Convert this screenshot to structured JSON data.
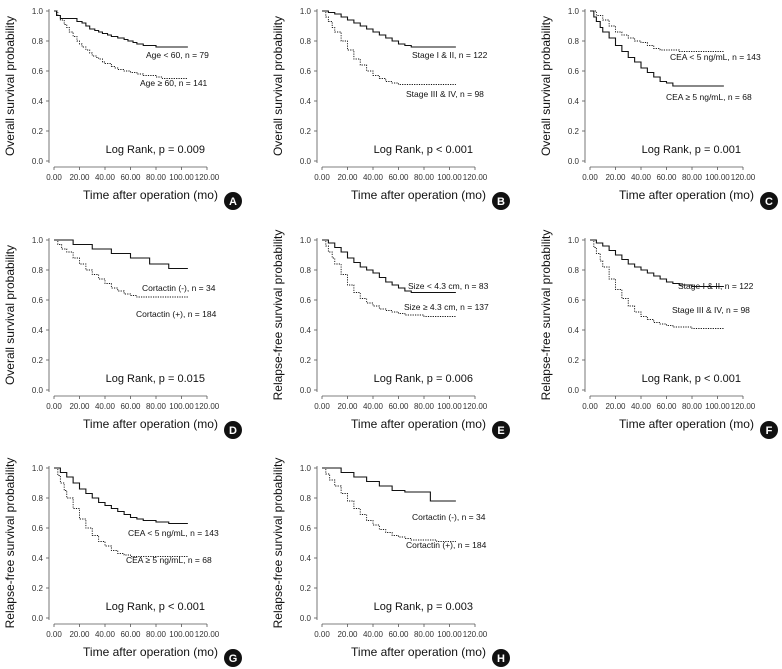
{
  "figure": {
    "x_ticks": [
      "0.00",
      "20.00",
      "40.00",
      "60.00",
      "80.00",
      "100.00",
      "120.00"
    ],
    "y_ticks": [
      "0.0",
      "0.2",
      "0.4",
      "0.6",
      "0.8",
      "1.0"
    ],
    "xlabel": "Time after operation (mo)"
  },
  "chart_data": [
    {
      "panel": "A",
      "type": "line",
      "ylabel": "Overall survival probability",
      "xlim": [
        0,
        120
      ],
      "ylim": [
        0,
        1
      ],
      "log_rank": "Log Rank, p = 0.009",
      "series": [
        {
          "name": "Age < 60, n = 79",
          "style": "solid",
          "x": [
            0,
            2,
            5,
            12,
            18,
            22,
            25,
            28,
            32,
            35,
            38,
            42,
            45,
            50,
            55,
            58,
            62,
            65,
            70,
            75,
            80,
            90,
            105
          ],
          "y": [
            1.0,
            0.97,
            0.95,
            0.95,
            0.93,
            0.92,
            0.9,
            0.88,
            0.87,
            0.86,
            0.85,
            0.84,
            0.83,
            0.82,
            0.81,
            0.8,
            0.79,
            0.78,
            0.77,
            0.77,
            0.76,
            0.76,
            0.76
          ]
        },
        {
          "name": "Age ≥ 60, n = 141",
          "style": "dotted",
          "x": [
            0,
            3,
            5,
            8,
            10,
            12,
            15,
            18,
            20,
            22,
            25,
            28,
            30,
            33,
            35,
            38,
            40,
            45,
            48,
            50,
            55,
            60,
            65,
            70,
            75,
            80,
            85,
            90,
            105
          ],
          "y": [
            1.0,
            0.97,
            0.94,
            0.91,
            0.89,
            0.86,
            0.83,
            0.8,
            0.78,
            0.76,
            0.74,
            0.72,
            0.7,
            0.69,
            0.68,
            0.66,
            0.65,
            0.63,
            0.62,
            0.61,
            0.6,
            0.59,
            0.58,
            0.57,
            0.57,
            0.56,
            0.55,
            0.55,
            0.55
          ]
        }
      ]
    },
    {
      "panel": "B",
      "type": "line",
      "ylabel": "Overall survival probability",
      "xlim": [
        0,
        120
      ],
      "ylim": [
        0,
        1
      ],
      "log_rank": "Log Rank, p < 0.001",
      "series": [
        {
          "name": "Stage I & II, n = 122",
          "style": "solid",
          "x": [
            0,
            5,
            10,
            15,
            20,
            25,
            30,
            35,
            40,
            45,
            50,
            55,
            60,
            65,
            70,
            80,
            90,
            105
          ],
          "y": [
            1.0,
            0.99,
            0.98,
            0.96,
            0.94,
            0.92,
            0.9,
            0.88,
            0.86,
            0.84,
            0.82,
            0.8,
            0.78,
            0.77,
            0.76,
            0.76,
            0.76,
            0.76
          ]
        },
        {
          "name": "Stage III & IV, n = 98",
          "style": "dotted",
          "x": [
            0,
            3,
            5,
            8,
            10,
            15,
            20,
            25,
            30,
            35,
            40,
            45,
            50,
            55,
            60,
            65,
            70,
            80,
            90,
            105
          ],
          "y": [
            1.0,
            0.96,
            0.93,
            0.89,
            0.86,
            0.8,
            0.74,
            0.68,
            0.64,
            0.6,
            0.57,
            0.55,
            0.53,
            0.52,
            0.51,
            0.51,
            0.51,
            0.51,
            0.51,
            0.51
          ]
        }
      ]
    },
    {
      "panel": "C",
      "type": "line",
      "ylabel": "Overall survival probability",
      "xlim": [
        0,
        120
      ],
      "ylim": [
        0,
        1
      ],
      "log_rank": "Log Rank, p = 0.001",
      "series": [
        {
          "name": "CEA < 5 ng/mL, n = 143",
          "style": "dotted",
          "x": [
            0,
            5,
            10,
            15,
            20,
            25,
            30,
            35,
            40,
            45,
            50,
            55,
            60,
            65,
            70,
            80,
            90,
            105
          ],
          "y": [
            1.0,
            0.97,
            0.94,
            0.9,
            0.86,
            0.84,
            0.82,
            0.8,
            0.79,
            0.77,
            0.75,
            0.74,
            0.74,
            0.74,
            0.73,
            0.73,
            0.73,
            0.73
          ]
        },
        {
          "name": "CEA ≥ 5 ng/mL, n = 68",
          "style": "solid",
          "x": [
            0,
            3,
            5,
            8,
            10,
            15,
            20,
            25,
            30,
            35,
            40,
            45,
            50,
            55,
            60,
            65,
            70,
            80,
            90,
            105
          ],
          "y": [
            1.0,
            0.96,
            0.93,
            0.89,
            0.86,
            0.82,
            0.77,
            0.73,
            0.69,
            0.66,
            0.62,
            0.59,
            0.56,
            0.53,
            0.52,
            0.5,
            0.5,
            0.5,
            0.5,
            0.5
          ]
        }
      ]
    },
    {
      "panel": "D",
      "type": "line",
      "ylabel": "Overall survival probability",
      "xlim": [
        0,
        120
      ],
      "ylim": [
        0,
        1
      ],
      "log_rank": "Log Rank, p = 0.015",
      "series": [
        {
          "name": "Cortactin (-), n = 34",
          "style": "solid",
          "x": [
            0,
            10,
            15,
            30,
            45,
            60,
            75,
            90,
            105
          ],
          "y": [
            1.0,
            1.0,
            0.97,
            0.94,
            0.91,
            0.88,
            0.84,
            0.81,
            0.81
          ]
        },
        {
          "name": "Cortactin (+), n = 184",
          "style": "dotted",
          "x": [
            0,
            3,
            6,
            10,
            15,
            20,
            25,
            30,
            35,
            40,
            45,
            50,
            55,
            60,
            65,
            70,
            80,
            90,
            105
          ],
          "y": [
            1.0,
            0.97,
            0.94,
            0.92,
            0.88,
            0.84,
            0.8,
            0.77,
            0.74,
            0.71,
            0.68,
            0.66,
            0.64,
            0.63,
            0.62,
            0.62,
            0.62,
            0.62,
            0.62
          ]
        }
      ]
    },
    {
      "panel": "E",
      "type": "line",
      "ylabel": "Relapse-free survival probability",
      "xlim": [
        0,
        120
      ],
      "ylim": [
        0,
        1
      ],
      "log_rank": "Log Rank, p = 0.006",
      "series": [
        {
          "name": "Size < 4.3 cm, n = 83",
          "style": "solid",
          "x": [
            0,
            5,
            10,
            15,
            20,
            25,
            30,
            35,
            40,
            45,
            50,
            55,
            60,
            65,
            70,
            80,
            90,
            105
          ],
          "y": [
            1.0,
            0.98,
            0.95,
            0.92,
            0.88,
            0.85,
            0.82,
            0.8,
            0.78,
            0.75,
            0.72,
            0.7,
            0.68,
            0.66,
            0.65,
            0.65,
            0.65,
            0.65
          ]
        },
        {
          "name": "Size ≥ 4.3 cm, n = 137",
          "style": "dotted",
          "x": [
            0,
            3,
            5,
            8,
            10,
            15,
            20,
            25,
            30,
            35,
            40,
            45,
            50,
            55,
            60,
            65,
            70,
            80,
            90,
            105
          ],
          "y": [
            1.0,
            0.96,
            0.92,
            0.88,
            0.84,
            0.77,
            0.7,
            0.65,
            0.61,
            0.58,
            0.56,
            0.54,
            0.53,
            0.52,
            0.51,
            0.5,
            0.5,
            0.49,
            0.49,
            0.49
          ]
        }
      ]
    },
    {
      "panel": "F",
      "type": "line",
      "ylabel": "Relapse-free survival probability",
      "xlim": [
        0,
        120
      ],
      "ylim": [
        0,
        1
      ],
      "log_rank": "Log Rank, p < 0.001",
      "series": [
        {
          "name": "Stage I & II, n = 122",
          "style": "solid",
          "x": [
            0,
            5,
            10,
            15,
            20,
            25,
            30,
            35,
            40,
            45,
            50,
            55,
            60,
            65,
            70,
            80,
            90,
            105
          ],
          "y": [
            1.0,
            0.98,
            0.96,
            0.93,
            0.9,
            0.87,
            0.84,
            0.82,
            0.8,
            0.78,
            0.76,
            0.74,
            0.72,
            0.71,
            0.7,
            0.69,
            0.69,
            0.69
          ]
        },
        {
          "name": "Stage III & IV, n = 98",
          "style": "dotted",
          "x": [
            0,
            3,
            5,
            8,
            10,
            15,
            20,
            25,
            30,
            35,
            40,
            45,
            50,
            55,
            60,
            65,
            70,
            80,
            90,
            105
          ],
          "y": [
            1.0,
            0.95,
            0.91,
            0.86,
            0.82,
            0.74,
            0.67,
            0.61,
            0.56,
            0.52,
            0.49,
            0.47,
            0.45,
            0.44,
            0.43,
            0.42,
            0.42,
            0.41,
            0.41,
            0.41
          ]
        }
      ]
    },
    {
      "panel": "G",
      "type": "line",
      "ylabel": "Relapse-free survival probability",
      "xlim": [
        0,
        120
      ],
      "ylim": [
        0,
        1
      ],
      "log_rank": "Log Rank, p < 0.001",
      "series": [
        {
          "name": "CEA < 5 ng/mL, n = 143",
          "style": "solid",
          "x": [
            0,
            5,
            10,
            15,
            20,
            25,
            30,
            35,
            40,
            45,
            50,
            55,
            60,
            65,
            70,
            80,
            90,
            105
          ],
          "y": [
            1.0,
            0.97,
            0.94,
            0.9,
            0.86,
            0.83,
            0.8,
            0.77,
            0.75,
            0.73,
            0.71,
            0.69,
            0.67,
            0.66,
            0.65,
            0.64,
            0.63,
            0.63
          ]
        },
        {
          "name": "CEA ≥ 5 ng/mL, n = 68",
          "style": "dotted",
          "x": [
            0,
            3,
            5,
            8,
            10,
            15,
            20,
            25,
            30,
            35,
            40,
            45,
            50,
            55,
            60,
            65,
            70,
            80,
            90,
            105
          ],
          "y": [
            1.0,
            0.95,
            0.9,
            0.85,
            0.8,
            0.73,
            0.66,
            0.6,
            0.55,
            0.51,
            0.48,
            0.45,
            0.43,
            0.42,
            0.41,
            0.41,
            0.41,
            0.41,
            0.41,
            0.41
          ]
        }
      ]
    },
    {
      "panel": "H",
      "type": "line",
      "ylabel": "Relapse-free survival probability",
      "xlim": [
        0,
        120
      ],
      "ylim": [
        0,
        1
      ],
      "log_rank": "Log Rank, p = 0.003",
      "series": [
        {
          "name": "Cortactin (-), n = 34",
          "style": "solid",
          "x": [
            0,
            10,
            15,
            25,
            35,
            45,
            55,
            65,
            75,
            85,
            90,
            105
          ],
          "y": [
            1.0,
            1.0,
            0.97,
            0.94,
            0.91,
            0.88,
            0.85,
            0.84,
            0.84,
            0.78,
            0.78,
            0.78
          ]
        },
        {
          "name": "Cortactin (+), n = 184",
          "style": "dotted",
          "x": [
            0,
            3,
            6,
            10,
            15,
            20,
            25,
            30,
            35,
            40,
            45,
            50,
            55,
            60,
            65,
            70,
            80,
            90,
            105
          ],
          "y": [
            1.0,
            0.96,
            0.92,
            0.88,
            0.83,
            0.78,
            0.73,
            0.69,
            0.65,
            0.62,
            0.59,
            0.57,
            0.55,
            0.54,
            0.53,
            0.52,
            0.52,
            0.51,
            0.51
          ]
        }
      ]
    }
  ]
}
